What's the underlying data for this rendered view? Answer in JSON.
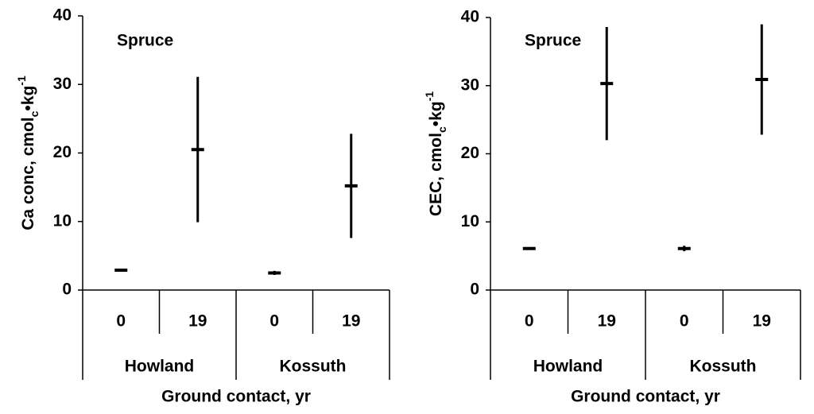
{
  "chart_data": [
    {
      "type": "errorbar",
      "annotation": "Spruce",
      "ylabel": [
        "Ca conc, cmol",
        "c",
        "•kg",
        "-1"
      ],
      "xlabel": "Ground contact, yr",
      "categories": [
        "0",
        "19",
        "0",
        "19"
      ],
      "groups": [
        "Howland",
        "Kossuth"
      ],
      "values": [
        2.9,
        20.5,
        2.5,
        15.2
      ],
      "errors": [
        0.2,
        10.6,
        0.3,
        7.6
      ],
      "color": "#000000",
      "ylim": [
        0,
        40
      ],
      "yticks": [
        0,
        10,
        20,
        30,
        40
      ]
    },
    {
      "type": "errorbar",
      "annotation": "Spruce",
      "ylabel": [
        "CEC, cmol",
        "c",
        "•kg",
        "-1"
      ],
      "xlabel": "Ground contact, yr",
      "categories": [
        "0",
        "19",
        "0",
        "19"
      ],
      "groups": [
        "Howland",
        "Kossuth"
      ],
      "values": [
        6.1,
        30.3,
        6.1,
        30.9
      ],
      "errors": [
        0.2,
        8.3,
        0.4,
        8.1
      ],
      "color": "#000000",
      "ylim": [
        0,
        40
      ],
      "yticks": [
        0,
        10,
        20,
        30,
        40
      ]
    }
  ]
}
